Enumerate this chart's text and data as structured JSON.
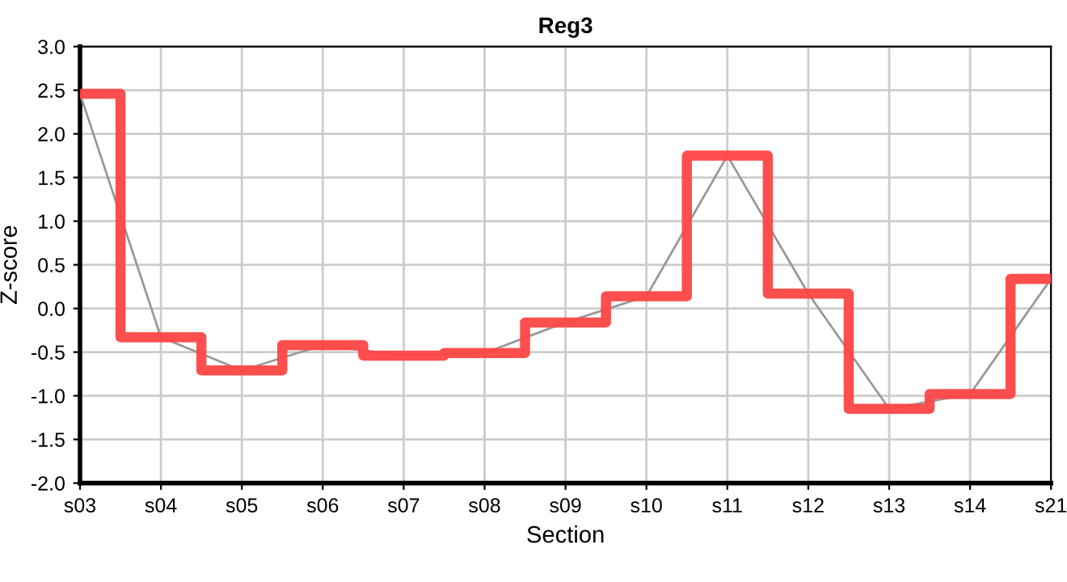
{
  "chart_data": {
    "type": "step",
    "title": "Reg3",
    "xlabel": "Section",
    "ylabel": "Z-score",
    "categories": [
      "s03",
      "s04",
      "s05",
      "s06",
      "s07",
      "s08",
      "s09",
      "s10",
      "s11",
      "s12",
      "s13",
      "s14",
      "s21"
    ],
    "series": [
      {
        "type": "line",
        "color": "#999999",
        "values": [
          2.46,
          -0.33,
          -0.71,
          -0.42,
          -0.54,
          -0.51,
          -0.16,
          0.14,
          1.75,
          0.17,
          -1.15,
          -0.98,
          0.34
        ]
      },
      {
        "color": "#ff4444",
        "values": [
          2.46,
          -0.33,
          -0.71,
          -0.42,
          -0.54,
          -0.51,
          -0.16,
          0.14,
          1.75,
          0.17,
          -1.15,
          -0.98,
          0.34
        ]
      }
    ],
    "ylim": [
      -2.0,
      3.0
    ],
    "yticks": [
      {
        "value": -2.0,
        "label": "-2.0"
      },
      {
        "value": -1.5,
        "label": "-1.5"
      },
      {
        "value": -1.0,
        "label": "-1.0"
      },
      {
        "value": -0.5,
        "label": "-0.5"
      },
      {
        "value": 0.0,
        "label": "0.0"
      },
      {
        "value": 0.5,
        "label": "0.5"
      },
      {
        "value": 1.0,
        "label": "1.0"
      },
      {
        "value": 1.5,
        "label": "1.5"
      },
      {
        "value": 2.0,
        "label": "2.0"
      },
      {
        "value": 2.5,
        "label": "2.5"
      },
      {
        "value": 3.0,
        "label": "3.0"
      }
    ],
    "grid": true,
    "legend": false
  }
}
